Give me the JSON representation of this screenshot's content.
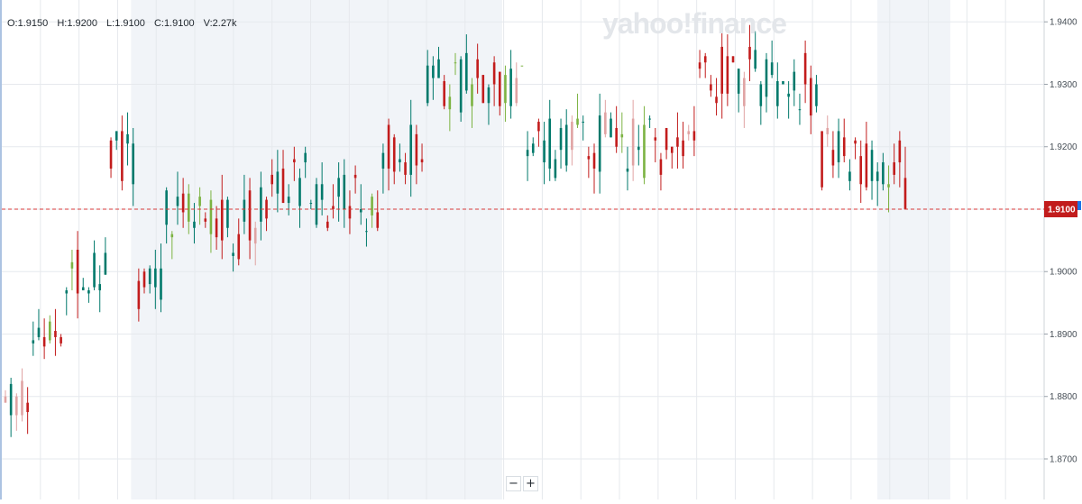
{
  "header": {
    "open": "O:1.9150",
    "high": "H:1.9200",
    "low": "L:1.9100",
    "close": "C:1.9100",
    "volume": "V:2.27k"
  },
  "watermark": "yahoo!finance",
  "zoom": {
    "minus": "−",
    "plus": "+"
  },
  "colors": {
    "up": "#00796b",
    "down": "#c21c1c",
    "up_thin": "#7cb342",
    "down_thin": "#e0a3a3",
    "session_shade": "#f1f4f8",
    "grid": "#e6e9ed",
    "current_line": "#d73a3a",
    "price_tag_bg": "#c21c1c",
    "price_tag_accent": "#1a73e8"
  },
  "chart_data": {
    "type": "candlestick",
    "y_axis": {
      "ticks": [
        "1.8700",
        "1.8800",
        "1.8900",
        "1.9000",
        "1.9100",
        "1.9200",
        "1.9300",
        "1.9400"
      ],
      "ylim": [
        1.8635,
        1.9435
      ]
    },
    "current_price": {
      "value": 1.91,
      "label": "1.9100"
    },
    "session_shading": [
      [
        0.124,
        0.48
      ],
      [
        0.84,
        0.91
      ]
    ],
    "last_candle": {
      "open": 1.915,
      "high": 1.92,
      "low": 1.91,
      "close": 1.91,
      "volume": "2.27k"
    },
    "segments": [
      {
        "count": 5,
        "base": 1.876,
        "span": 0.008
      },
      {
        "count": 6,
        "base": 1.888,
        "span": 0.004
      },
      {
        "count": 8,
        "base": 1.8955,
        "span": 0.009
      },
      {
        "count": 5,
        "base": 1.914,
        "span": 0.01
      },
      {
        "count": 5,
        "base": 1.894,
        "span": 0.008
      },
      {
        "count": 12,
        "base": 1.9045,
        "span": 0.009
      },
      {
        "count": 6,
        "base": 1.9015,
        "span": 0.012
      },
      {
        "count": 9,
        "base": 1.908,
        "span": 0.012
      },
      {
        "count": 12,
        "base": 1.9065,
        "span": 0.009
      },
      {
        "count": 8,
        "base": 1.9155,
        "span": 0.008
      },
      {
        "count": 8,
        "base": 1.925,
        "span": 0.01
      },
      {
        "count": 10,
        "base": 1.9265,
        "span": 0.008
      },
      {
        "count": 12,
        "base": 1.915,
        "span": 0.01
      },
      {
        "count": 14,
        "base": 1.9145,
        "span": 0.011
      },
      {
        "count": 5,
        "base": 1.918,
        "span": 0.006
      },
      {
        "count": 12,
        "base": 1.926,
        "span": 0.01
      },
      {
        "count": 10,
        "base": 1.925,
        "span": 0.01
      },
      {
        "count": 10,
        "base": 1.913,
        "span": 0.01
      },
      {
        "count": 6,
        "base": 1.9135,
        "span": 0.008
      }
    ]
  }
}
